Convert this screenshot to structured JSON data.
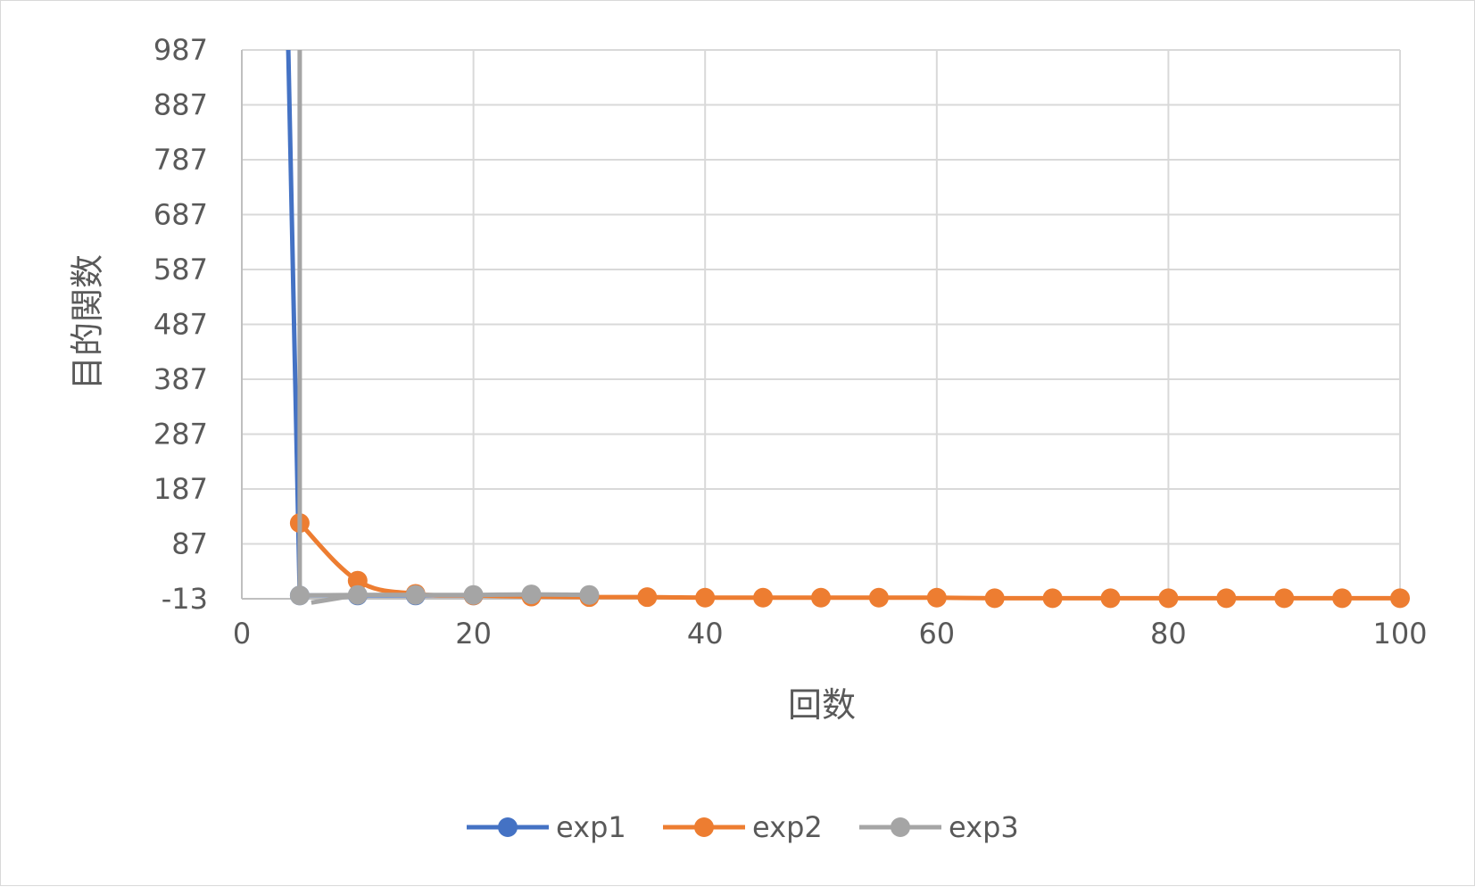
{
  "chart_data": {
    "type": "scatter",
    "title": "",
    "xlabel": "回数",
    "ylabel": "目的関数",
    "xlim": [
      0,
      100
    ],
    "ylim": [
      -13,
      987
    ],
    "x_ticks": [
      "0",
      "20",
      "40",
      "60",
      "80",
      "100"
    ],
    "y_ticks": [
      "-13",
      "87",
      "187",
      "287",
      "387",
      "487",
      "587",
      "687",
      "787",
      "887",
      "987"
    ],
    "grid": true,
    "legend_position": "bottom",
    "series": [
      {
        "name": "exp1",
        "color": "#4472c4",
        "x": [
          5,
          10,
          15,
          20,
          25,
          30
        ],
        "y": [
          -7,
          -7,
          -7,
          -7,
          -7,
          -7
        ],
        "leading_line": {
          "x": [
            4,
            5
          ],
          "y": [
            1000,
            -7
          ]
        }
      },
      {
        "name": "exp2",
        "color": "#ed7d31",
        "x": [
          5,
          10,
          15,
          20,
          25,
          30,
          35,
          40,
          45,
          50,
          55,
          60,
          65,
          70,
          75,
          80,
          85,
          90,
          95,
          100
        ],
        "y": [
          125,
          20,
          -4,
          -7,
          -9,
          -10,
          -10,
          -11,
          -11,
          -11,
          -11,
          -11,
          -12,
          -12,
          -12,
          -12,
          -12,
          -12,
          -12,
          -12
        ]
      },
      {
        "name": "exp3",
        "color": "#a5a5a5",
        "x": [
          5,
          10,
          15,
          20,
          25,
          30
        ],
        "y": [
          -7,
          -6,
          -6,
          -6,
          -5,
          -6
        ],
        "leading_line": {
          "x": [
            5,
            5
          ],
          "y": [
            1000,
            -7
          ]
        },
        "lower_segment": {
          "x": [
            6,
            10
          ],
          "y": [
            -20,
            -6
          ]
        }
      }
    ]
  }
}
